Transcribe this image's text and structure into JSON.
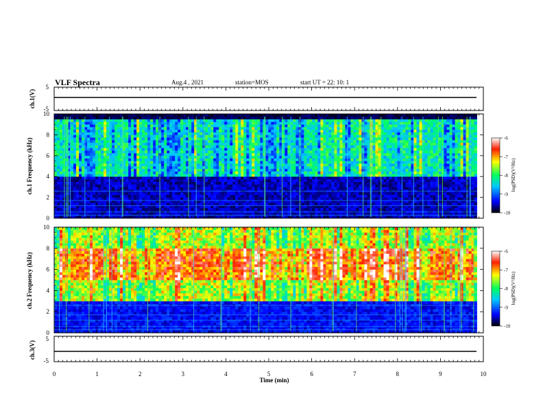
{
  "header": {
    "title": "VLF Spectra",
    "date": "Aug.4 , 2021",
    "station": "station=MOS",
    "start": "start UT =  22: 10: 1"
  },
  "chart_data": [
    {
      "type": "line",
      "ylabel": "ch.1(V)",
      "ylim": [
        -5,
        5
      ],
      "y_ticks": [
        "5",
        "-5"
      ],
      "x": [
        0,
        10
      ],
      "values": [
        -1.8,
        -1.8
      ]
    },
    {
      "type": "heatmap",
      "ylabel": "ch.1\nFrequency (kHz)",
      "ylim": [
        0,
        10
      ],
      "y_ticks": [
        "0",
        "2",
        "4",
        "6",
        "8",
        "10"
      ],
      "colorbar": {
        "label": "log(PSD)(V²/Hz)",
        "ticks": [
          "-6",
          "-7",
          "-8",
          "-9",
          "-10"
        ],
        "range": [
          -10,
          -6
        ]
      },
      "noise_band_khz": [
        4,
        9.4
      ],
      "typical_level": -8.5
    },
    {
      "type": "heatmap",
      "ylabel": "ch.2\nFrequency (kHz)",
      "ylim": [
        0,
        10
      ],
      "y_ticks": [
        "0",
        "2",
        "4",
        "6",
        "8",
        "10"
      ],
      "colorbar": {
        "label": "log(PSD)(V²/Hz)",
        "ticks": [
          "-6",
          "-7",
          "-8",
          "-9",
          "-10"
        ],
        "range": [
          -10,
          -6
        ]
      },
      "noise_band_khz": [
        3,
        10
      ],
      "peak_band_khz": [
        5,
        8
      ],
      "typical_level": -7
    },
    {
      "type": "line",
      "ylabel": "ch.3(V)",
      "ylim": [
        -5,
        5
      ],
      "y_ticks": [
        "5",
        "-5"
      ],
      "x": [
        0,
        10
      ],
      "values": [
        -1.8,
        -1.8
      ]
    }
  ],
  "x_axis": {
    "label": "Time (min)",
    "ticks": [
      "0",
      "1",
      "2",
      "3",
      "4",
      "5",
      "6",
      "7",
      "8",
      "9",
      "10"
    ],
    "range": [
      0,
      10
    ],
    "data_end": 9.85
  }
}
